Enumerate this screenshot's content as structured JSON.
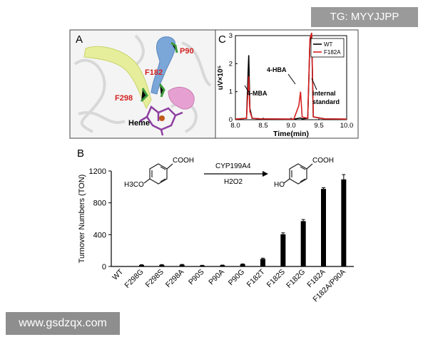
{
  "watermarks": {
    "top_right": "TG: MYYJJPP",
    "bottom_left": "www.gsdzqx.com"
  },
  "panel_a": {
    "letter": "A",
    "labels": {
      "p90": "P90",
      "f182": "F182",
      "f298": "F298",
      "heme": "Heme"
    },
    "colors": {
      "channel_yellow": "#e6ee9c",
      "channel_blue": "#7aa6d8",
      "channel_pink": "#e7a0d2",
      "heme": "#8e3fa0",
      "residue_label": "#d32020"
    }
  },
  "panel_b": {
    "letter": "B",
    "scheme": {
      "substrate_group": "COOH",
      "substrate_sub": "H3CO",
      "enzyme": "CYP199A4",
      "reagent": "H2O2",
      "product_group": "COOH",
      "product_sub": "HO"
    }
  },
  "panel_c": {
    "letter": "C"
  },
  "chart_data": [
    {
      "type": "bar",
      "panel": "B",
      "categories": [
        "WT",
        "F298G",
        "F298S",
        "F298A",
        "P90S",
        "P90A",
        "P90G",
        "F182T",
        "F182S",
        "F182G",
        "F182A",
        "F182A/P90A"
      ],
      "values": [
        4,
        18,
        20,
        22,
        12,
        15,
        28,
        95,
        405,
        570,
        975,
        1095
      ],
      "errors": [
        0,
        4,
        4,
        4,
        3,
        3,
        5,
        10,
        18,
        20,
        15,
        60
      ],
      "ylabel": "Turnover Numbers (TON)",
      "yticks": [
        "0",
        "400",
        "800",
        "1200"
      ],
      "ylim": [
        0,
        1200
      ],
      "bar_color": "#000000"
    },
    {
      "type": "line",
      "panel": "C",
      "xlabel": "Time(min)",
      "ylabel": "uV×10⁵",
      "xlim": [
        8.0,
        10.0
      ],
      "ylim": [
        0,
        3
      ],
      "xticks": [
        "8.0",
        "8.5",
        "9.0",
        "9.5",
        "10.0"
      ],
      "yticks": [
        "0",
        "1",
        "2",
        "3"
      ],
      "legend": "top-right",
      "series": [
        {
          "name": "WT",
          "color": "#000000",
          "x": [
            8.0,
            8.2,
            8.24,
            8.26,
            8.3,
            8.45,
            9.05,
            9.14,
            9.17,
            9.2,
            9.3,
            9.34,
            9.37,
            9.4,
            9.6,
            10.0
          ],
          "y": [
            0.02,
            0.05,
            2.3,
            0.4,
            0.05,
            0.03,
            0.02,
            0.05,
            0.06,
            0.03,
            0.05,
            2.8,
            3.0,
            0.1,
            0.03,
            0.02
          ]
        },
        {
          "name": "F182A",
          "color": "#d62020",
          "x": [
            8.0,
            8.2,
            8.24,
            8.26,
            8.3,
            8.45,
            9.05,
            9.14,
            9.17,
            9.2,
            9.3,
            9.34,
            9.37,
            9.4,
            9.6,
            10.0
          ],
          "y": [
            0.02,
            0.05,
            1.55,
            0.3,
            0.05,
            0.03,
            0.02,
            0.5,
            1.0,
            0.1,
            0.05,
            2.9,
            3.1,
            0.1,
            0.03,
            0.02
          ]
        }
      ],
      "annotations": [
        "4-MBA",
        "4-HBA",
        "internal",
        "standard"
      ]
    }
  ]
}
